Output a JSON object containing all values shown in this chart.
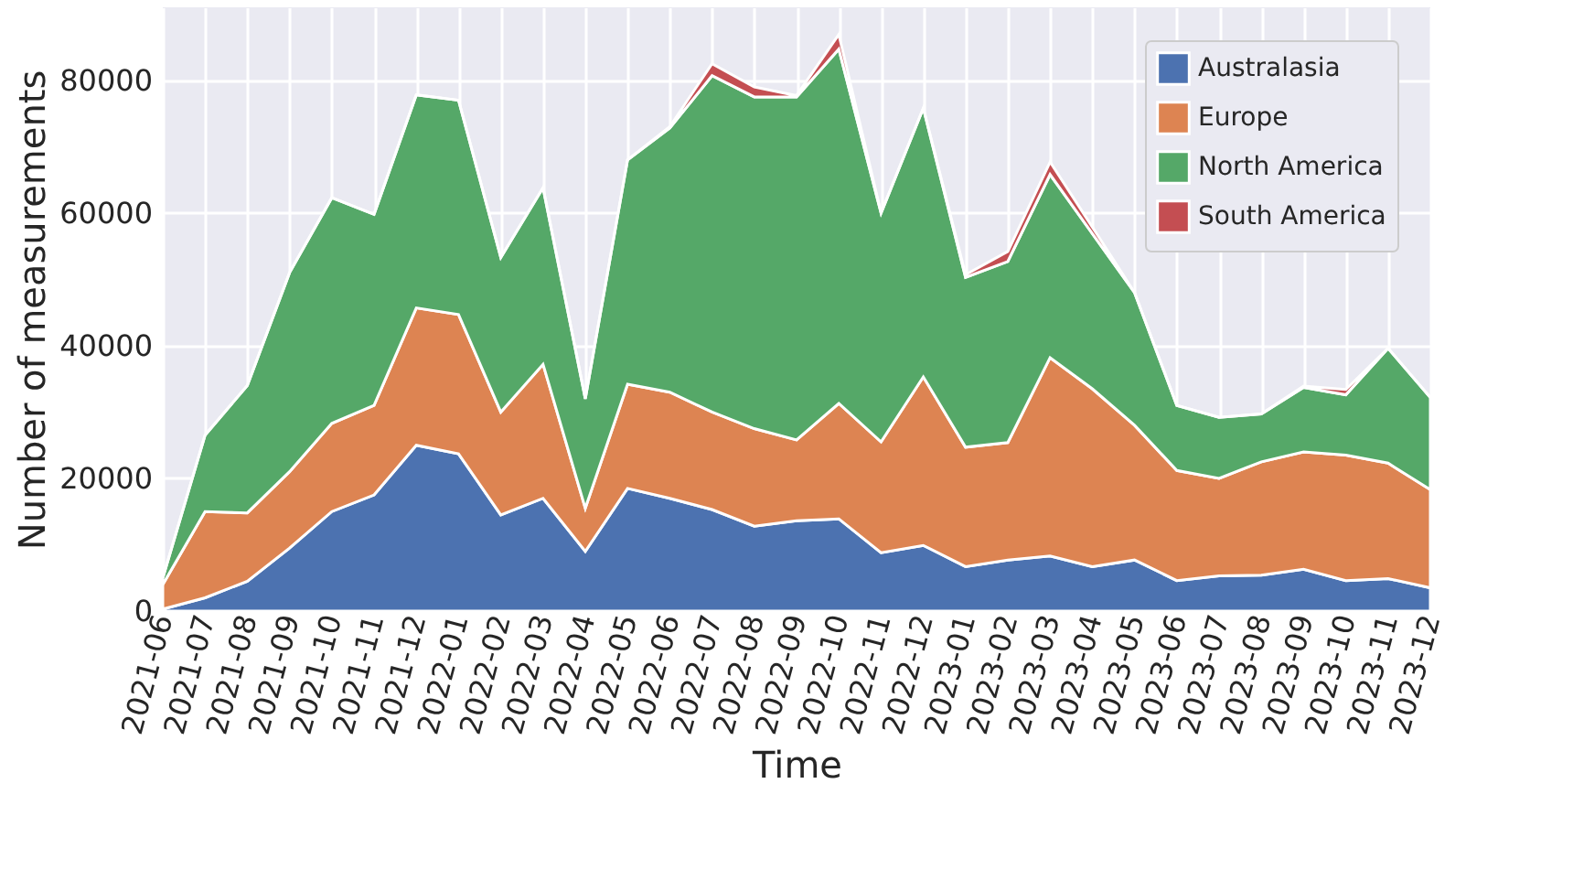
{
  "chart_data": {
    "type": "area",
    "stacked": true,
    "xlabel": "Time",
    "ylabel": "Number of measurements",
    "categories": [
      "2021-06",
      "2021-07",
      "2021-08",
      "2021-09",
      "2021-10",
      "2021-11",
      "2021-12",
      "2022-01",
      "2022-02",
      "2022-03",
      "2022-04",
      "2022-05",
      "2022-06",
      "2022-07",
      "2022-08",
      "2022-09",
      "2022-10",
      "2022-11",
      "2022-12",
      "2023-01",
      "2023-02",
      "2023-03",
      "2023-04",
      "2023-05",
      "2023-06",
      "2023-07",
      "2023-08",
      "2023-09",
      "2023-10",
      "2023-11",
      "2023-12"
    ],
    "series": [
      {
        "name": "Australasia",
        "color": "#4c72b0",
        "values": [
          300,
          2000,
          4500,
          9500,
          15000,
          17500,
          25000,
          23700,
          14500,
          17000,
          9000,
          18500,
          17000,
          15300,
          12800,
          13600,
          13900,
          8800,
          9900,
          6700,
          7700,
          8300,
          6700,
          7700,
          4600,
          5300,
          5400,
          6300,
          4600,
          4900,
          3500
        ]
      },
      {
        "name": "Europe",
        "color": "#dd8452",
        "values": [
          3700,
          13000,
          10300,
          11500,
          13300,
          13500,
          20700,
          21000,
          15500,
          20200,
          6500,
          15700,
          16000,
          14700,
          14700,
          12200,
          17400,
          16700,
          25400,
          18000,
          17700,
          29900,
          26800,
          20300,
          16600,
          14700,
          17100,
          17700,
          18900,
          17400,
          14800
        ]
      },
      {
        "name": "North America",
        "color": "#55a868",
        "values": [
          1000,
          11500,
          19200,
          30000,
          34000,
          28800,
          32100,
          32300,
          23300,
          26600,
          16500,
          33800,
          39800,
          50700,
          50000,
          51700,
          53400,
          34500,
          40500,
          25600,
          27300,
          27600,
          23400,
          20000,
          9800,
          9200,
          7200,
          9700,
          9100,
          17300,
          13900
        ]
      },
      {
        "name": "South America",
        "color": "#c44e52",
        "values": [
          0,
          0,
          0,
          0,
          0,
          0,
          0,
          0,
          0,
          0,
          0,
          0,
          200,
          1800,
          1500,
          200,
          2200,
          0,
          0,
          400,
          1500,
          1900,
          1000,
          0,
          0,
          0,
          0,
          200,
          800,
          0,
          0
        ]
      }
    ],
    "ylim": [
      0,
      91000
    ],
    "yticks": [
      0,
      20000,
      40000,
      60000,
      80000
    ],
    "grid": true,
    "legend": "top right"
  }
}
